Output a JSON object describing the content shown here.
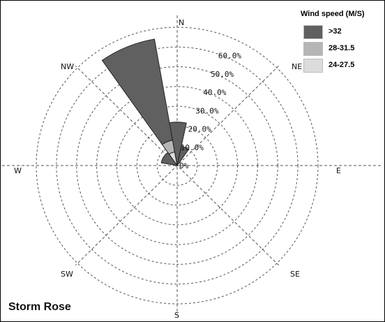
{
  "chart_data": {
    "type": "polar-bar",
    "title": "Storm Rose",
    "directions": [
      "N",
      "NE",
      "E",
      "SE",
      "S",
      "SW",
      "W",
      "NW"
    ],
    "ring_labels": [
      "0%",
      "10.0%",
      "20.0%",
      "30.0%",
      "40.0%",
      "50.0%",
      "60.0%"
    ],
    "rmax": 70,
    "legend_title": "Wind speed (M/S)",
    "series": [
      {
        "name": ">32",
        "color": "#606060"
      },
      {
        "name": "28-31.5",
        "color": "#b5b5b5"
      },
      {
        "name": "24-27.5",
        "color": "#dcdcdc"
      }
    ],
    "sectors": [
      {
        "from_deg": -35,
        "to_deg": -10,
        "values": [
          52,
          6,
          7
        ]
      },
      {
        "from_deg": -10,
        "to_deg": 12,
        "values": [
          22,
          0,
          0
        ]
      },
      {
        "from_deg": 12,
        "to_deg": 35,
        "values": [
          10,
          0,
          0
        ]
      },
      {
        "from_deg": -80,
        "to_deg": -35,
        "values": [
          8,
          0,
          0
        ]
      }
    ]
  }
}
